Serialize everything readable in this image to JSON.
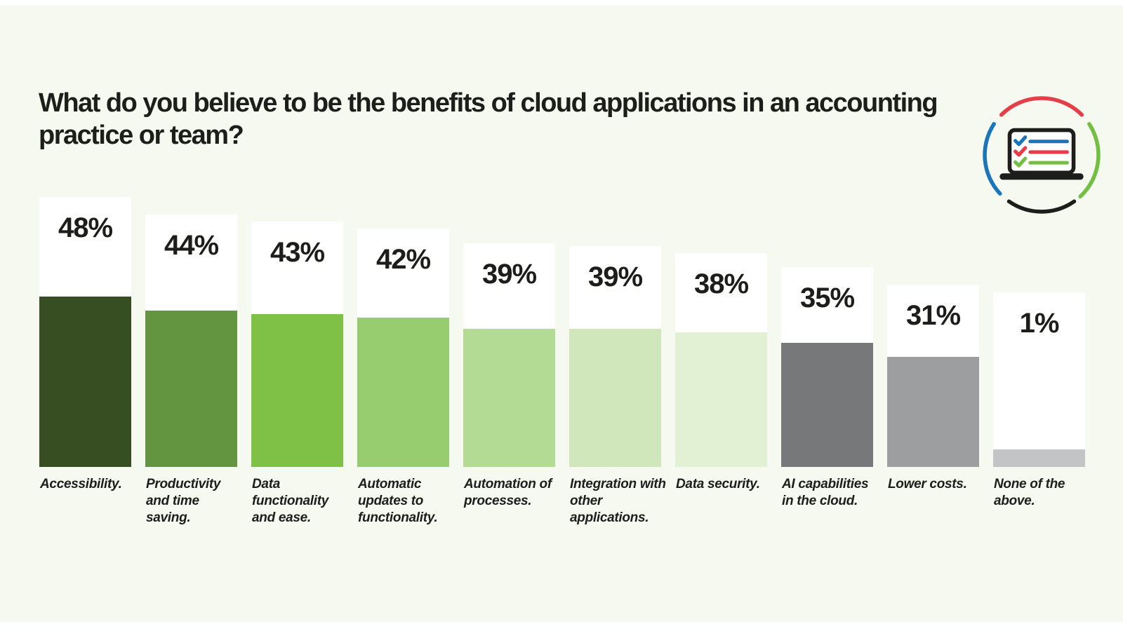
{
  "colors": {
    "background": "#f6f9ef",
    "text": "#1d1d1b",
    "card": "#ffffff"
  },
  "icon": {
    "name": "laptop-checklist",
    "arc_colors": {
      "top": "#e63e48",
      "left": "#1b75bb",
      "right": "#72bf44",
      "bottom": "#1d1d1b"
    },
    "checklist_colors": [
      "#1b75bb",
      "#e63e48",
      "#72bf44"
    ]
  },
  "chart_data": {
    "type": "bar",
    "title": "What do you believe to be the benefits of cloud applications in an accounting practice or team?",
    "unit": "percent of respondents",
    "ylim": [
      0,
      50
    ],
    "grid": false,
    "legend": false,
    "value_label_position": "above bar, inside white card",
    "bars": [
      {
        "label": "Accessibility.",
        "value": 48,
        "value_label": "48%",
        "color": "#364e22"
      },
      {
        "label": "Productivity and time saving.",
        "value": 44,
        "value_label": "44%",
        "color": "#639540"
      },
      {
        "label": "Data functionality and ease.",
        "value": 43,
        "value_label": "43%",
        "color": "#7fc147"
      },
      {
        "label": "Automatic updates to functionality.",
        "value": 42,
        "value_label": "42%",
        "color": "#97cd6e"
      },
      {
        "label": "Automation of processes.",
        "value": 39,
        "value_label": "39%",
        "color": "#b4db93"
      },
      {
        "label": "Integration with other applications.",
        "value": 39,
        "value_label": "39%",
        "color": "#d0e7bb"
      },
      {
        "label": "Data security.",
        "value": 38,
        "value_label": "38%",
        "color": "#e2f0d4"
      },
      {
        "label": "AI capabilities in the cloud.",
        "value": 35,
        "value_label": "35%",
        "color": "#77787a"
      },
      {
        "label": "Lower costs.",
        "value": 31,
        "value_label": "31%",
        "color": "#9c9ea0"
      },
      {
        "label": "None of the above.",
        "value": 1,
        "value_label": "1%",
        "color": "#c3c4c5"
      }
    ]
  }
}
